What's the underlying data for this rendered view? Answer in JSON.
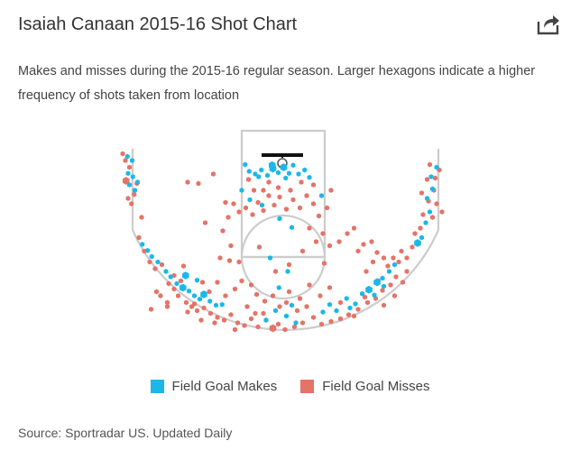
{
  "header": {
    "title": "Isaiah Canaan 2015-16 Shot Chart",
    "subtitle": "Makes and misses during the 2015-16 regular season. Larger hexagons indicate a higher frequency of shots taken from location",
    "share_icon": "share-arrow-icon"
  },
  "footer": {
    "source": "Source: Sportradar US. Updated Daily"
  },
  "colors": {
    "make": "#1ab8e8",
    "miss": "#e57368",
    "court_lines": "#cccccc"
  },
  "chart_data": {
    "type": "scatter",
    "title": "Isaiah Canaan 2015-16 Shot Chart",
    "xlabel": "",
    "ylabel": "",
    "xlim": [
      -250,
      250
    ],
    "ylim": [
      -50,
      260
    ],
    "coordinate_note": "x and y in feet/10 from basket, basket at (0,0)",
    "legend": [
      {
        "name": "Field Goal Makes",
        "color": "#1ab8e8"
      },
      {
        "name": "Field Goal Misses",
        "color": "#e57368"
      }
    ],
    "series": [
      {
        "name": "Field Goal Makes",
        "points": [
          [
            -229,
            -10,
            1
          ],
          [
            -222,
            -4,
            1
          ],
          [
            -228,
            15,
            1
          ],
          [
            -221,
            20,
            1
          ],
          [
            -214,
            28,
            1
          ],
          [
            -226,
            32,
            1
          ],
          [
            -218,
            40,
            1
          ],
          [
            -207,
            120,
            1
          ],
          [
            -199,
            129,
            1
          ],
          [
            -193,
            138,
            1
          ],
          [
            -184,
            146,
            1
          ],
          [
            -172,
            160,
            1
          ],
          [
            -165,
            168,
            1
          ],
          [
            -156,
            178,
            1
          ],
          [
            -147,
            184,
            2
          ],
          [
            -138,
            189,
            1
          ],
          [
            -130,
            196,
            1
          ],
          [
            -122,
            201,
            1
          ],
          [
            -116,
            194,
            2
          ],
          [
            -107,
            204,
            1
          ],
          [
            -98,
            210,
            1
          ],
          [
            -89,
            209,
            1
          ],
          [
            -143,
            166,
            2
          ],
          [
            -126,
            173,
            1
          ],
          [
            -55,
            2,
            1
          ],
          [
            -49,
            12,
            1
          ],
          [
            -40,
            16,
            1
          ],
          [
            -31,
            10,
            1
          ],
          [
            -22,
            18,
            1
          ],
          [
            -14,
            8,
            2
          ],
          [
            -6,
            14,
            1
          ],
          [
            2,
            6,
            2
          ],
          [
            10,
            15,
            1
          ],
          [
            16,
            3,
            1
          ],
          [
            24,
            16,
            1
          ],
          [
            33,
            10,
            1
          ],
          [
            40,
            21,
            1
          ],
          [
            -60,
            40,
            1
          ],
          [
            -48,
            54,
            1
          ],
          [
            -30,
            62,
            1
          ],
          [
            58,
            48,
            1
          ],
          [
            -4,
            82,
            1
          ],
          [
            14,
            95,
            1
          ],
          [
            -18,
            140,
            1
          ],
          [
            8,
            160,
            1
          ],
          [
            -5,
            184,
            1
          ],
          [
            6,
            226,
            1
          ],
          [
            14,
            210,
            1
          ],
          [
            -24,
            232,
            1
          ],
          [
            20,
            236,
            1
          ],
          [
            -10,
            218,
            1
          ],
          [
            60,
            220,
            1
          ],
          [
            70,
            209,
            1
          ],
          [
            80,
            218,
            1
          ],
          [
            95,
            200,
            1
          ],
          [
            108,
            208,
            1
          ],
          [
            118,
            193,
            1
          ],
          [
            128,
            187,
            2
          ],
          [
            140,
            176,
            2
          ],
          [
            148,
            170,
            1
          ],
          [
            158,
            160,
            1
          ],
          [
            166,
            150,
            1
          ],
          [
            150,
            182,
            1
          ],
          [
            136,
            195,
            1
          ],
          [
            100,
            214,
            1
          ],
          [
            200,
            118,
            2
          ],
          [
            206,
            110,
            1
          ],
          [
            212,
            88,
            1
          ],
          [
            218,
            72,
            1
          ],
          [
            214,
            52,
            1
          ],
          [
            222,
            38,
            1
          ],
          [
            220,
            20,
            1
          ],
          [
            228,
            6,
            1
          ],
          [
            -15,
            3,
            2
          ],
          [
            5,
            22,
            1
          ],
          [
            -35,
            20,
            1
          ]
        ]
      },
      {
        "name": "Field Goal Misses",
        "points": [
          [
            -236,
            -14,
            1
          ],
          [
            -232,
            -4,
            1
          ],
          [
            -226,
            6,
            1
          ],
          [
            -231,
            26,
            2
          ],
          [
            -219,
            46,
            1
          ],
          [
            -228,
            52,
            1
          ],
          [
            -223,
            60,
            1
          ],
          [
            -215,
            30,
            1
          ],
          [
            -212,
            110,
            1
          ],
          [
            -204,
            130,
            1
          ],
          [
            -196,
            146,
            1
          ],
          [
            -188,
            156,
            1
          ],
          [
            -178,
            150,
            1
          ],
          [
            -168,
            178,
            1
          ],
          [
            -160,
            186,
            1
          ],
          [
            -150,
            174,
            1
          ],
          [
            -154,
            196,
            1
          ],
          [
            -142,
            206,
            1
          ],
          [
            -134,
            212,
            1
          ],
          [
            -126,
            218,
            1
          ],
          [
            -116,
            214,
            1
          ],
          [
            -106,
            222,
            1
          ],
          [
            -96,
            228,
            1
          ],
          [
            -86,
            232,
            1
          ],
          [
            -76,
            224,
            1
          ],
          [
            -66,
            236,
            1
          ],
          [
            -56,
            240,
            1
          ],
          [
            -46,
            230,
            1
          ],
          [
            -36,
            242,
            1
          ],
          [
            -14,
            244,
            2
          ],
          [
            -24,
            232,
            1
          ],
          [
            -6,
            238,
            1
          ],
          [
            4,
            246,
            1
          ],
          [
            18,
            242,
            1
          ],
          [
            30,
            236,
            1
          ],
          [
            -194,
            216,
            1
          ],
          [
            -180,
            196,
            1
          ],
          [
            -170,
            206,
            1
          ],
          [
            -160,
            166,
            1
          ],
          [
            -146,
            152,
            1
          ],
          [
            -130,
            208,
            1
          ],
          [
            -140,
            28,
            1
          ],
          [
            -124,
            30,
            1
          ],
          [
            -102,
            16,
            1
          ],
          [
            -114,
            88,
            1
          ],
          [
            -88,
            100,
            1
          ],
          [
            -76,
            122,
            1
          ],
          [
            -78,
            144,
            1
          ],
          [
            -92,
            140,
            1
          ],
          [
            -60,
            174,
            1
          ],
          [
            -46,
            180,
            1
          ],
          [
            -64,
            146,
            1
          ],
          [
            -72,
            60,
            1
          ],
          [
            -64,
            72,
            1
          ],
          [
            -54,
            66,
            1
          ],
          [
            -44,
            76,
            1
          ],
          [
            -36,
            58,
            1
          ],
          [
            -28,
            70,
            1
          ],
          [
            -20,
            48,
            1
          ],
          [
            -12,
            62,
            1
          ],
          [
            -4,
            50,
            1
          ],
          [
            6,
            68,
            1
          ],
          [
            16,
            54,
            1
          ],
          [
            26,
            66,
            1
          ],
          [
            36,
            48,
            1
          ],
          [
            46,
            60,
            1
          ],
          [
            54,
            78,
            1
          ],
          [
            66,
            66,
            1
          ],
          [
            -84,
            58,
            1
          ],
          [
            -80,
            80,
            1
          ],
          [
            -42,
            40,
            1
          ],
          [
            -50,
            24,
            1
          ],
          [
            28,
            28,
            1
          ],
          [
            46,
            32,
            1
          ],
          [
            72,
            40,
            1
          ],
          [
            -20,
            28,
            1
          ],
          [
            -6,
            36,
            1
          ],
          [
            12,
            40,
            1
          ],
          [
            -28,
            40,
            1
          ],
          [
            40,
            96,
            1
          ],
          [
            50,
            116,
            1
          ],
          [
            60,
            104,
            1
          ],
          [
            70,
            122,
            1
          ],
          [
            84,
            116,
            1
          ],
          [
            96,
            104,
            1
          ],
          [
            106,
            96,
            1
          ],
          [
            112,
            130,
            1
          ],
          [
            120,
            120,
            1
          ],
          [
            132,
            116,
            1
          ],
          [
            140,
            132,
            1
          ],
          [
            150,
            140,
            1
          ],
          [
            124,
            160,
            1
          ],
          [
            134,
            146,
            1
          ],
          [
            156,
            152,
            1
          ],
          [
            164,
            140,
            1
          ],
          [
            172,
            146,
            1
          ],
          [
            176,
            130,
            1
          ],
          [
            184,
            140,
            1
          ],
          [
            192,
            124,
            1
          ],
          [
            184,
            160,
            1
          ],
          [
            178,
            176,
            1
          ],
          [
            168,
            168,
            1
          ],
          [
            160,
            180,
            1
          ],
          [
            148,
            188,
            1
          ],
          [
            138,
            200,
            1
          ],
          [
            126,
            206,
            1
          ],
          [
            112,
            216,
            1
          ],
          [
            98,
            224,
            1
          ],
          [
            86,
            230,
            1
          ],
          [
            72,
            234,
            1
          ],
          [
            58,
            238,
            1
          ],
          [
            46,
            228,
            1
          ],
          [
            36,
            212,
            1
          ],
          [
            22,
            218,
            1
          ],
          [
            6,
            206,
            1
          ],
          [
            -14,
            196,
            1
          ],
          [
            -4,
            212,
            1
          ],
          [
            -26,
            204,
            1
          ],
          [
            10,
            190,
            1
          ],
          [
            26,
            200,
            1
          ],
          [
            106,
            226,
            1
          ],
          [
            122,
            198,
            1
          ],
          [
            196,
            104,
            1
          ],
          [
            204,
            96,
            1
          ],
          [
            208,
            76,
            1
          ],
          [
            216,
            56,
            1
          ],
          [
            206,
            44,
            1
          ],
          [
            214,
            24,
            1
          ],
          [
            224,
            40,
            1
          ],
          [
            228,
            60,
            1
          ],
          [
            222,
            80,
            1
          ],
          [
            218,
            2,
            1
          ],
          [
            232,
            10,
            1
          ],
          [
            226,
            22,
            1
          ],
          [
            236,
            72,
            1
          ],
          [
            -208,
            80,
            1
          ],
          [
            -186,
            190,
            1
          ],
          [
            -170,
            212,
            1
          ],
          [
            -140,
            220,
            1
          ],
          [
            -120,
            232,
            1
          ],
          [
            -100,
            236,
            1
          ],
          [
            -70,
            246,
            1
          ],
          [
            -118,
            176,
            1
          ],
          [
            -108,
            190,
            1
          ],
          [
            -84,
            196,
            1
          ],
          [
            -96,
            176,
            1
          ],
          [
            -70,
            186,
            1
          ],
          [
            -38,
            194,
            1
          ],
          [
            -28,
            222,
            1
          ],
          [
            40,
            180,
            1
          ],
          [
            56,
            196,
            1
          ],
          [
            70,
            184,
            1
          ],
          [
            86,
            206,
            1
          ],
          [
            166,
            196,
            1
          ],
          [
            150,
            210,
            1
          ],
          [
            142,
            174,
            1
          ],
          [
            10,
            150,
            1
          ],
          [
            -10,
            160,
            1
          ],
          [
            30,
            130,
            1
          ],
          [
            -34,
            124,
            1
          ],
          [
            62,
            148,
            1
          ],
          [
            -52,
            212,
            1
          ],
          [
            -40,
            222,
            1
          ]
        ]
      }
    ]
  }
}
